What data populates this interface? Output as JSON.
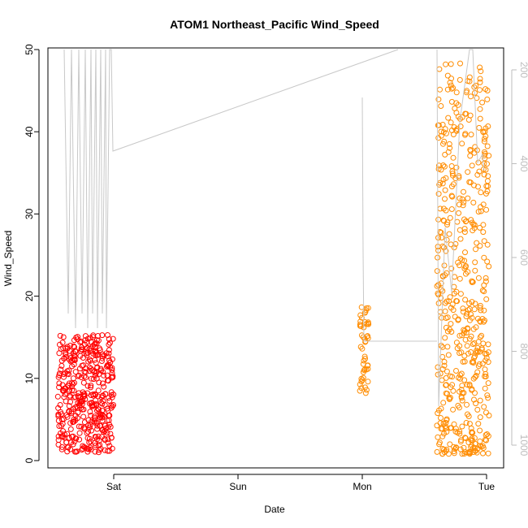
{
  "chart_data": {
    "type": "scatter",
    "title": "ATOM1 Northeast_Pacific Wind_Speed",
    "xlabel": "Date",
    "ylabel": "Wind_Speed",
    "x_ticks": [
      "Sat",
      "Sun",
      "Mon",
      "Tue"
    ],
    "y_ticks": [
      "0",
      "10",
      "20",
      "30",
      "40",
      "50"
    ],
    "ylim": [
      0,
      50
    ],
    "right_axis": {
      "ticks": [
        "200",
        "400",
        "600",
        "800",
        "1000"
      ],
      "color": "#bdbdbd",
      "reversed": true
    },
    "colors": {
      "series_red": "#ff0000",
      "series_orange": "#ff8c00",
      "pressure_line": "#c8c8c8"
    },
    "series": [
      {
        "color": "#ff0000",
        "x_days": [
          0.55,
          1.0
        ],
        "y_min": 1,
        "y_max": 15.3
      },
      {
        "color": "#ff8c00",
        "x_days": [
          2.98,
          3.05
        ],
        "y_min": 8,
        "y_max": 19
      },
      {
        "color": "#ff8c00",
        "x_days": [
          3.6,
          4.02
        ],
        "y_min": 0.8,
        "y_max": 48.5
      }
    ]
  }
}
